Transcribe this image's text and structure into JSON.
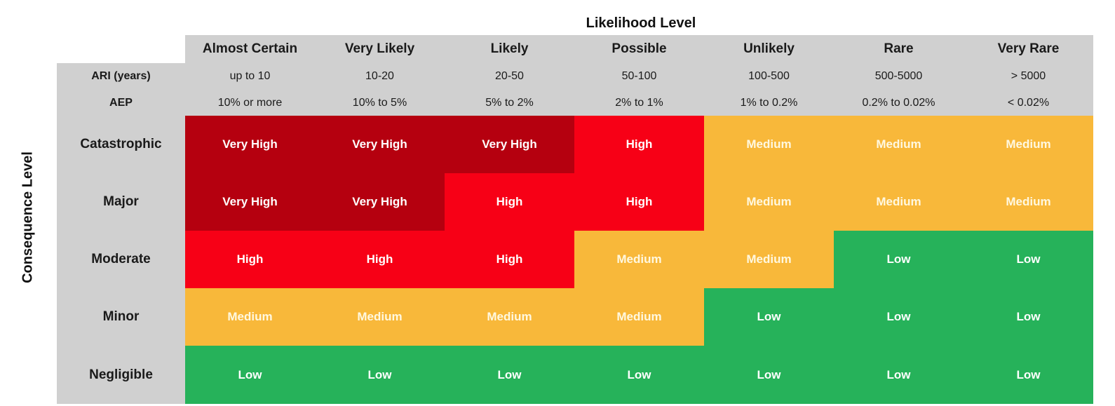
{
  "headers": {
    "likelihood_title": "Likelihood Level",
    "consequence_title": "Consequence Level"
  },
  "likelihood_levels": [
    "Almost Certain",
    "Very Likely",
    "Likely",
    "Possible",
    "Unlikely",
    "Rare",
    "Very Rare"
  ],
  "ari": {
    "label": "ARI (years)",
    "values": [
      "up to 10",
      "10-20",
      "20-50",
      "50-100",
      "100-500",
      "500-5000",
      "> 5000"
    ]
  },
  "aep": {
    "label": "AEP",
    "values": [
      "10% or more",
      "10% to 5%",
      "5% to 2%",
      "2% to 1%",
      "1% to 0.2%",
      "0.2% to 0.02%",
      "< 0.02%"
    ]
  },
  "consequence_levels": [
    "Catastrophic",
    "Major",
    "Moderate",
    "Minor",
    "Negligible"
  ],
  "matrix": [
    [
      "Very High",
      "Very High",
      "Very High",
      "High",
      "Medium",
      "Medium",
      "Medium"
    ],
    [
      "Very High",
      "Very High",
      "High",
      "High",
      "Medium",
      "Medium",
      "Medium"
    ],
    [
      "High",
      "High",
      "High",
      "Medium",
      "Medium",
      "Low",
      "Low"
    ],
    [
      "Medium",
      "Medium",
      "Medium",
      "Medium",
      "Low",
      "Low",
      "Low"
    ],
    [
      "Low",
      "Low",
      "Low",
      "Low",
      "Low",
      "Low",
      "Low"
    ]
  ],
  "colors": {
    "very_high": "#b5000f",
    "high": "#f70016",
    "medium": "#f8b83a",
    "low": "#26b25a",
    "header_grey": "#d0d0d0"
  }
}
